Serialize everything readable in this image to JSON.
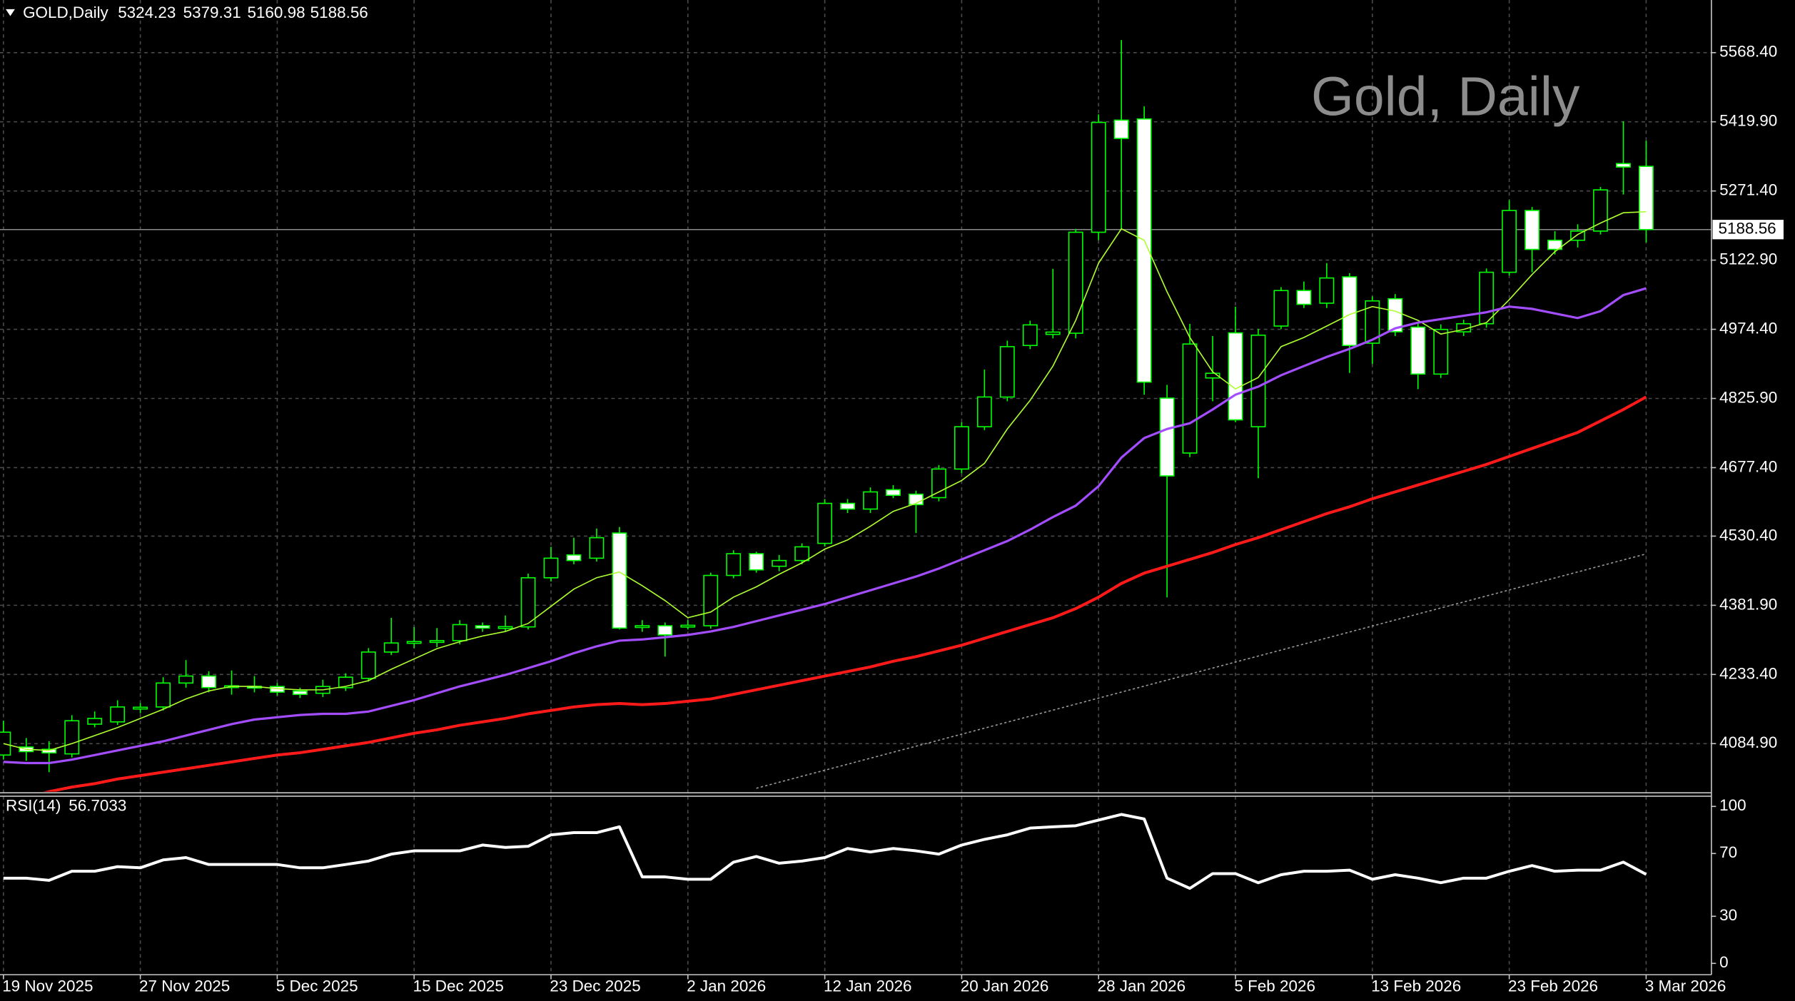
{
  "chart_data": [
    {
      "type": "candlestick",
      "title": "GOLD,Daily",
      "watermark": "Gold, Daily",
      "categories": [
        "19 Nov 2025",
        null,
        null,
        null,
        null,
        null,
        "27 Nov 2025",
        null,
        null,
        null,
        null,
        null,
        "5 Dec 2025",
        null,
        null,
        null,
        null,
        null,
        "15 Dec 2025",
        null,
        null,
        null,
        null,
        null,
        "23 Dec 2025",
        null,
        null,
        null,
        null,
        null,
        "2 Jan 2026",
        null,
        null,
        null,
        null,
        null,
        "12 Jan 2026",
        null,
        null,
        null,
        null,
        null,
        "20 Jan 2026",
        null,
        null,
        null,
        null,
        null,
        "28 Jan 2026",
        null,
        null,
        null,
        null,
        null,
        "5 Feb 2026",
        null,
        null,
        null,
        null,
        null,
        "13 Feb 2026",
        null,
        null,
        null,
        null,
        null,
        "23 Feb 2026",
        null,
        null,
        null,
        null,
        null,
        "3 Mar 2026"
      ],
      "open": [
        4060.4,
        4077.6,
        4072.7,
        4062.9,
        4126.7,
        4131.6,
        4161,
        4163.6,
        4215,
        4230,
        4207,
        4208,
        4207.6,
        4198,
        4193,
        4205,
        4225,
        4281.5,
        4302,
        4303,
        4306,
        4338,
        4335,
        4335.5,
        4441,
        4490,
        4483,
        4537,
        4336,
        4338,
        4337,
        4338,
        4446,
        4492.7,
        4465.7,
        4478,
        4514.8,
        4600.7,
        4588.5,
        4630,
        4620.4,
        4613,
        4674.4,
        4765.3,
        4829,
        4939.7,
        4963.5,
        4966,
        5182.8,
        5423.5,
        5426,
        4826.7,
        4708.8,
        4870,
        4966.7,
        4765.3,
        4981.4,
        5057.6,
        5030.5,
        5087,
        4944.6,
        5040,
        4979,
        4878.3,
        4969,
        4986.4,
        5096.9,
        5229.5,
        5165.6,
        5165.6,
        5185.3,
        5330.2,
        5324.23
      ],
      "high": [
        4134,
        4097,
        4090,
        4146,
        4154,
        4178,
        4172,
        4227.5,
        4264.3,
        4240,
        4242,
        4230,
        4215,
        4205,
        4222,
        4236,
        4290,
        4355,
        4335,
        4333,
        4350,
        4345,
        4360,
        4450,
        4507.4,
        4527,
        4546.7,
        4550,
        4350,
        4345,
        4350,
        4452,
        4500,
        4497,
        4490,
        4515,
        4610,
        4610,
        4635,
        4640,
        4628,
        4683,
        4775,
        4888,
        4950,
        4993,
        5104.2,
        5190,
        5435.8,
        5595.4,
        5453,
        4855,
        4986,
        4960,
        5023,
        4975,
        5065,
        5077,
        5116.5,
        5095,
        5045,
        5050,
        4990,
        4985,
        4995,
        5105,
        5251.6,
        5237,
        5185,
        5200,
        5280,
        5421,
        5379.31
      ],
      "low": [
        4050.6,
        4048,
        4023.6,
        4055,
        4120,
        4125,
        4150,
        4156,
        4205,
        4195,
        4190,
        4195,
        4188,
        4183,
        4185,
        4198,
        4218,
        4275,
        4290,
        4292,
        4298,
        4325,
        4327,
        4330,
        4433,
        4470,
        4476,
        4330,
        4325,
        4271.7,
        4330,
        4332,
        4440,
        4452,
        4455,
        4470,
        4508,
        4580,
        4580,
        4612,
        4537,
        4605,
        4665,
        4758,
        4820,
        4932,
        4955,
        4955,
        5165.6,
        5190.2,
        4834,
        4399,
        4700,
        4820,
        4775,
        4654.8,
        4975,
        5020,
        5020,
        4880.7,
        4900,
        4960,
        4846,
        4870,
        4960,
        4978,
        5090,
        5096.9,
        5135,
        5150,
        5178,
        5263.8,
        5160.98
      ],
      "close": [
        4109.5,
        4067.8,
        4065,
        4134,
        4139,
        4163.6,
        4163,
        4215,
        4230,
        4205.3,
        4209,
        4206,
        4195.5,
        4190.6,
        4207.6,
        4227.5,
        4281.5,
        4301,
        4304,
        4306,
        4340.4,
        4333,
        4336,
        4441,
        4483,
        4478,
        4527,
        4333,
        4338,
        4318.3,
        4339,
        4446,
        4492.7,
        4458,
        4478,
        4507.4,
        4600.7,
        4588.5,
        4625.3,
        4618,
        4598,
        4674.4,
        4765.3,
        4829.1,
        4937.2,
        4983.9,
        4968.4,
        5182.8,
        5418.6,
        5384.2,
        4861,
        4659.7,
        4942.8,
        4880,
        4780,
        4961.8,
        5057.6,
        5028,
        5084.6,
        4939.7,
        5035.4,
        4969.1,
        4878.3,
        4974.1,
        4986.4,
        5096.9,
        5229.5,
        5146,
        5146,
        5185.3,
        5273.7,
        5322.8,
        5188.56
      ],
      "up_color": "#000000",
      "down_color": "#ffffff",
      "wick_color": "#00ff00",
      "lines": [
        {
          "color": "#adff2f",
          "width": 1,
          "dashed": false,
          "values": [
            4085.0,
            4072.7,
            4070.3,
            4085.0,
            4102.2,
            4119.4,
            4139.0,
            4158.7,
            4180.8,
            4198.0,
            4207.8,
            4207.8,
            4202.9,
            4200.4,
            4200.4,
            4207.8,
            4220.1,
            4244.6,
            4266.7,
            4288.8,
            4303.6,
            4315.9,
            4325.7,
            4342.9,
            4379.7,
            4416.6,
            4441.1,
            4453.4,
            4423.9,
            4392.0,
            4355.2,
            4367.4,
            4399.4,
            4421.5,
            4448.5,
            4473.0,
            4502.5,
            4522.2,
            4551.6,
            4583.6,
            4600.8,
            4625.3,
            4649.9,
            4686.7,
            4760.4,
            4821.8,
            4895.5,
            4993.7,
            5116.5,
            5190.2,
            5165.6,
            5055.1,
            4956.9,
            4883.2,
            4846.4,
            4870.9,
            4937.2,
            4956.9,
            4981.4,
            5006.0,
            5023.2,
            5013.4,
            4993.7,
            4964.2,
            4974.1,
            4988.8,
            5037.9,
            5092.0,
            5141.1,
            5177.9,
            5202.5,
            5224.6,
            5227.0
          ]
        },
        {
          "color": "#a34dff",
          "width": 2,
          "dashed": false,
          "values": [
            4045.7,
            4043.2,
            4043.2,
            4050.6,
            4060.4,
            4070.3,
            4080.1,
            4089.9,
            4102.2,
            4114.5,
            4126.8,
            4136.6,
            4141.5,
            4146.4,
            4148.9,
            4148.9,
            4153.8,
            4166.0,
            4178.3,
            4193.1,
            4207.8,
            4220.1,
            4232.4,
            4247.1,
            4261.8,
            4279.0,
            4293.8,
            4306.0,
            4308.5,
            4313.4,
            4318.3,
            4325.7,
            4335.5,
            4347.8,
            4360.1,
            4372.4,
            4384.6,
            4399.4,
            4414.1,
            4428.8,
            4443.6,
            4460.8,
            4480.4,
            4500.1,
            4519.7,
            4544.3,
            4571.3,
            4595.8,
            4637.6,
            4699.0,
            4740.8,
            4760.4,
            4772.7,
            4802.2,
            4834.1,
            4851.3,
            4875.8,
            4895.5,
            4915.1,
            4932.3,
            4952.0,
            4976.5,
            4988.8,
            4996.2,
            5003.5,
            5010.9,
            5023.2,
            5018.3,
            5008.5,
            4998.6,
            5013.4,
            5047.8,
            5062.5
          ]
        },
        {
          "color": "#ff1a1a",
          "width": 2.5,
          "dashed": false,
          "values": [
            3957.3,
            3969.6,
            3981.8,
            3991.7,
            3999.0,
            4008.9,
            4016.2,
            4023.6,
            4031.0,
            4038.3,
            4045.7,
            4053.1,
            4060.4,
            4065.4,
            4072.7,
            4080.1,
            4087.5,
            4097.3,
            4107.1,
            4114.5,
            4124.3,
            4131.7,
            4139.0,
            4148.9,
            4156.2,
            4163.6,
            4168.5,
            4171.0,
            4168.5,
            4171.0,
            4175.9,
            4180.8,
            4190.6,
            4200.5,
            4210.3,
            4220.1,
            4229.9,
            4239.7,
            4249.6,
            4261.8,
            4271.7,
            4283.9,
            4296.2,
            4311.0,
            4325.7,
            4340.4,
            4355.2,
            4374.8,
            4399.4,
            4428.8,
            4450.9,
            4465.7,
            4480.4,
            4495.2,
            4512.3,
            4527.1,
            4544.3,
            4561.5,
            4578.7,
            4593.4,
            4610.6,
            4625.3,
            4640.1,
            4654.8,
            4669.5,
            4684.3,
            4701.5,
            4718.6,
            4735.8,
            4753.0,
            4777.6,
            4802.2,
            4829.2
          ]
        },
        {
          "color": "#9a9a9a",
          "width": 1,
          "dashed": true,
          "values": [
            null,
            null,
            null,
            null,
            null,
            null,
            null,
            null,
            null,
            null,
            null,
            null,
            null,
            null,
            null,
            null,
            null,
            null,
            null,
            null,
            null,
            null,
            null,
            null,
            null,
            null,
            null,
            null,
            null,
            null,
            null,
            null,
            null,
            3989.1,
            4002.0,
            4014.9,
            4027.8,
            4040.7,
            4053.6,
            4066.5,
            4079.4,
            4092.3,
            4105.2,
            4118.1,
            4131.0,
            4143.9,
            4156.8,
            4169.7,
            4182.6,
            4195.5,
            4208.4,
            4221.3,
            4234.2,
            4247.1,
            4260.0,
            4272.9,
            4285.8,
            4298.7,
            4311.6,
            4324.5,
            4337.4,
            4350.3,
            4363.2,
            4376.1,
            4389.0,
            4401.9,
            4414.8,
            4427.7,
            4440.6,
            4453.5,
            4466.4,
            4479.3,
            4492.2
          ]
        }
      ],
      "price_line": 5188.56,
      "ylim": [
        3981.8,
        5681.4
      ],
      "yticks": [
        {
          "value": 5568.4,
          "label": "5568.40"
        },
        {
          "value": 5419.9,
          "label": "5419.90"
        },
        {
          "value": 5271.4,
          "label": "5271.40"
        },
        {
          "value": 5122.9,
          "label": "5122.90"
        },
        {
          "value": 4974.4,
          "label": "4974.40"
        },
        {
          "value": 4825.9,
          "label": "4825.90"
        },
        {
          "value": 4677.4,
          "label": "4677.40"
        },
        {
          "value": 4530.4,
          "label": "4530.40"
        },
        {
          "value": 4381.9,
          "label": "4381.90"
        },
        {
          "value": 4233.4,
          "label": "4233.40"
        },
        {
          "value": 4084.9,
          "label": "4084.90"
        }
      ],
      "grid": true
    },
    {
      "type": "line",
      "series": [
        {
          "name": "RSI(14)",
          "color": "#ffffff",
          "values": [
            54.3,
            54.3,
            52.9,
            58.7,
            58.7,
            61.6,
            60.9,
            65.9,
            67.4,
            63.0,
            63.0,
            63.0,
            63.0,
            60.9,
            60.9,
            63.0,
            65.2,
            69.6,
            71.7,
            71.7,
            71.7,
            75.4,
            73.9,
            74.6,
            81.9,
            83.3,
            83.3,
            87.0,
            55.1,
            55.1,
            53.6,
            53.6,
            64.5,
            68.1,
            63.8,
            65.2,
            67.4,
            73.2,
            71.0,
            73.2,
            71.7,
            69.6,
            75.4,
            79.0,
            81.9,
            86.2,
            87.0,
            87.7,
            91.3,
            94.9,
            92.0,
            54.3,
            47.8,
            57.2,
            57.2,
            51.4,
            56.5,
            58.7,
            58.7,
            59.4,
            53.6,
            56.5,
            54.3,
            51.4,
            54.3,
            54.3,
            58.7,
            62.3,
            58.7,
            59.4,
            59.4,
            64.5,
            56.7033
          ]
        }
      ],
      "ylim": [
        -7.2,
        106.5
      ],
      "yticks": [
        100,
        70,
        30,
        0
      ]
    }
  ]
}
